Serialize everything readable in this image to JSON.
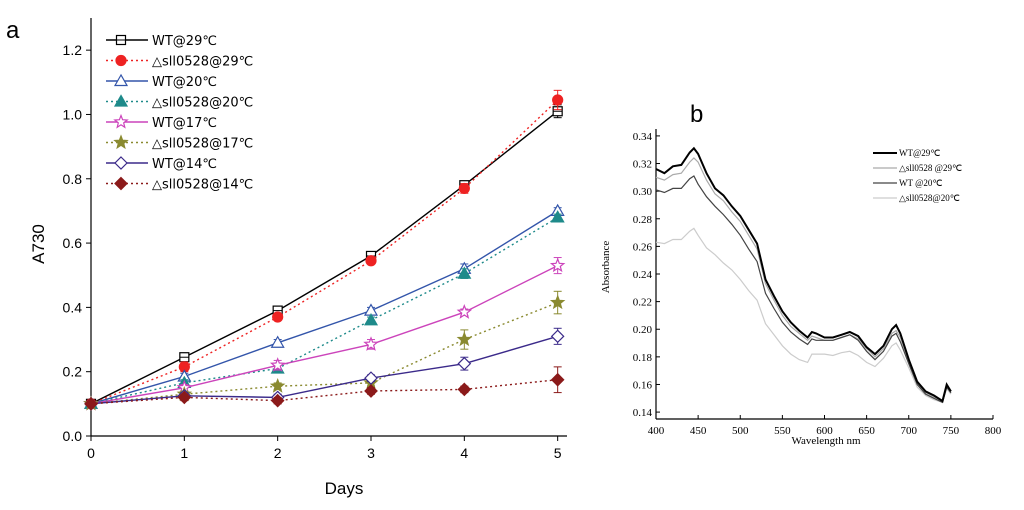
{
  "panel_a_label": "a",
  "panel_b_label": "b",
  "chart_data": [
    {
      "type": "line",
      "panel": "a",
      "title": "",
      "xlabel": "Days",
      "ylabel": "A730",
      "xlim": [
        0,
        5.1
      ],
      "ylim": [
        0,
        1.3
      ],
      "xticks": [
        0,
        1,
        2,
        3,
        4,
        5
      ],
      "xtick_labels": [
        "0",
        "1",
        "2",
        "3",
        "4",
        "5"
      ],
      "yticks": [
        0.0,
        0.2,
        0.4,
        0.6,
        0.8,
        1.0,
        1.2
      ],
      "ytick_labels": [
        "0.0",
        "0.2",
        "0.4",
        "0.6",
        "0.8",
        "1.0",
        "1.2"
      ],
      "legend_position": "top-left",
      "x": [
        0,
        1,
        2,
        3,
        4,
        5
      ],
      "series": [
        {
          "name": "WT@29℃",
          "values": [
            0.1,
            0.245,
            0.39,
            0.56,
            0.78,
            1.01
          ],
          "errors": [
            0,
            0.01,
            0.01,
            0.01,
            0.01,
            0.02
          ],
          "color": "#000000",
          "dash": "solid",
          "marker": "open-square"
        },
        {
          "name": "△sll0528@29℃",
          "values": [
            0.1,
            0.215,
            0.37,
            0.545,
            0.77,
            1.045
          ],
          "errors": [
            0,
            0.015,
            0.01,
            0.01,
            0.015,
            0.03
          ],
          "color": "#ee2222",
          "dash": "dotted",
          "marker": "filled-circle"
        },
        {
          "name": "WT@20℃",
          "values": [
            0.1,
            0.185,
            0.29,
            0.39,
            0.52,
            0.7
          ],
          "errors": [
            0,
            0.01,
            0.01,
            0.01,
            0.015,
            0.01
          ],
          "color": "#3355aa",
          "dash": "solid",
          "marker": "open-triangle"
        },
        {
          "name": "△sll0528@20℃",
          "values": [
            0.1,
            0.165,
            0.21,
            0.36,
            0.505,
            0.68
          ],
          "errors": [
            0,
            0.01,
            0.01,
            0.01,
            0.015,
            0.01
          ],
          "color": "#1e8a8a",
          "dash": "dotted",
          "marker": "filled-triangle"
        },
        {
          "name": "WT@17℃",
          "values": [
            0.1,
            0.15,
            0.22,
            0.285,
            0.385,
            0.53
          ],
          "errors": [
            0,
            0.01,
            0.015,
            0.015,
            0.01,
            0.025
          ],
          "color": "#cc44bb",
          "dash": "solid",
          "marker": "open-star"
        },
        {
          "name": "△sll0528@17℃",
          "values": [
            0.1,
            0.13,
            0.155,
            0.165,
            0.3,
            0.415
          ],
          "errors": [
            0,
            0.01,
            0.01,
            0.01,
            0.03,
            0.035
          ],
          "color": "#8a8a30",
          "dash": "dotted",
          "marker": "filled-star"
        },
        {
          "name": "WT@14℃",
          "values": [
            0.1,
            0.125,
            0.12,
            0.18,
            0.225,
            0.31
          ],
          "errors": [
            0,
            0.01,
            0.01,
            0.01,
            0.02,
            0.025
          ],
          "color": "#3b2a8a",
          "dash": "solid",
          "marker": "open-diamond"
        },
        {
          "name": "△sll0528@14℃",
          "values": [
            0.1,
            0.12,
            0.11,
            0.14,
            0.145,
            0.175
          ],
          "errors": [
            0,
            0.01,
            0.01,
            0.01,
            0.01,
            0.04
          ],
          "color": "#8b1a1a",
          "dash": "dotted",
          "marker": "filled-diamond"
        }
      ]
    },
    {
      "type": "line",
      "panel": "b",
      "title": "",
      "xlabel": "Wavelength nm",
      "ylabel": "Absorbance",
      "xlim": [
        400,
        800
      ],
      "ylim": [
        0.135,
        0.345
      ],
      "xticks": [
        400,
        450,
        500,
        550,
        600,
        650,
        700,
        750,
        800
      ],
      "xtick_labels": [
        "400",
        "450",
        "500",
        "550",
        "600",
        "650",
        "700",
        "750",
        "800"
      ],
      "yticks": [
        0.14,
        0.16,
        0.18,
        0.2,
        0.22,
        0.24,
        0.26,
        0.28,
        0.3,
        0.32,
        0.34
      ],
      "ytick_labels": [
        "0.14",
        "0.16",
        "0.18",
        "0.20",
        "0.22",
        "0.24",
        "0.26",
        "0.28",
        "0.30",
        "0.32",
        "0.34"
      ],
      "legend_position": "top-right",
      "x": [
        400,
        410,
        420,
        430,
        440,
        445,
        450,
        460,
        470,
        480,
        490,
        500,
        510,
        520,
        530,
        540,
        550,
        560,
        570,
        580,
        585,
        590,
        600,
        610,
        620,
        630,
        640,
        650,
        660,
        670,
        680,
        685,
        690,
        700,
        710,
        720,
        730,
        740,
        745,
        750
      ],
      "series": [
        {
          "name": "WT@29℃",
          "color": "#000000",
          "width": 2.0,
          "values": [
            0.316,
            0.313,
            0.318,
            0.319,
            0.328,
            0.331,
            0.327,
            0.313,
            0.302,
            0.297,
            0.289,
            0.282,
            0.272,
            0.262,
            0.236,
            0.224,
            0.213,
            0.205,
            0.199,
            0.194,
            0.198,
            0.197,
            0.194,
            0.194,
            0.196,
            0.198,
            0.195,
            0.187,
            0.182,
            0.188,
            0.2,
            0.203,
            0.197,
            0.178,
            0.162,
            0.155,
            0.152,
            0.148,
            0.16,
            0.155
          ]
        },
        {
          "name": "△sll0528 @29℃",
          "color": "#aaaaaa",
          "width": 1.2,
          "values": [
            0.31,
            0.308,
            0.312,
            0.313,
            0.321,
            0.324,
            0.321,
            0.308,
            0.298,
            0.293,
            0.285,
            0.278,
            0.268,
            0.258,
            0.233,
            0.221,
            0.21,
            0.202,
            0.197,
            0.192,
            0.195,
            0.194,
            0.192,
            0.192,
            0.194,
            0.196,
            0.193,
            0.186,
            0.18,
            0.186,
            0.197,
            0.199,
            0.194,
            0.176,
            0.161,
            0.154,
            0.151,
            0.148,
            0.159,
            0.154
          ]
        },
        {
          "name": "WT @20℃",
          "color": "#444444",
          "width": 1.2,
          "values": [
            0.301,
            0.299,
            0.302,
            0.302,
            0.309,
            0.311,
            0.305,
            0.296,
            0.289,
            0.283,
            0.276,
            0.268,
            0.258,
            0.249,
            0.226,
            0.215,
            0.205,
            0.198,
            0.193,
            0.189,
            0.193,
            0.192,
            0.192,
            0.192,
            0.194,
            0.196,
            0.192,
            0.184,
            0.178,
            0.184,
            0.195,
            0.197,
            0.191,
            0.175,
            0.16,
            0.153,
            0.15,
            0.147,
            0.158,
            0.154
          ]
        },
        {
          "name": "△sll0528@20℃",
          "color": "#cccccc",
          "width": 1.2,
          "values": [
            0.263,
            0.262,
            0.265,
            0.265,
            0.271,
            0.273,
            0.268,
            0.259,
            0.254,
            0.248,
            0.243,
            0.236,
            0.228,
            0.221,
            0.204,
            0.196,
            0.188,
            0.182,
            0.178,
            0.176,
            0.182,
            0.182,
            0.182,
            0.181,
            0.183,
            0.184,
            0.181,
            0.176,
            0.173,
            0.179,
            0.188,
            0.19,
            0.185,
            0.172,
            0.158,
            0.152,
            0.149,
            0.147,
            0.157,
            0.153
          ]
        }
      ]
    }
  ]
}
